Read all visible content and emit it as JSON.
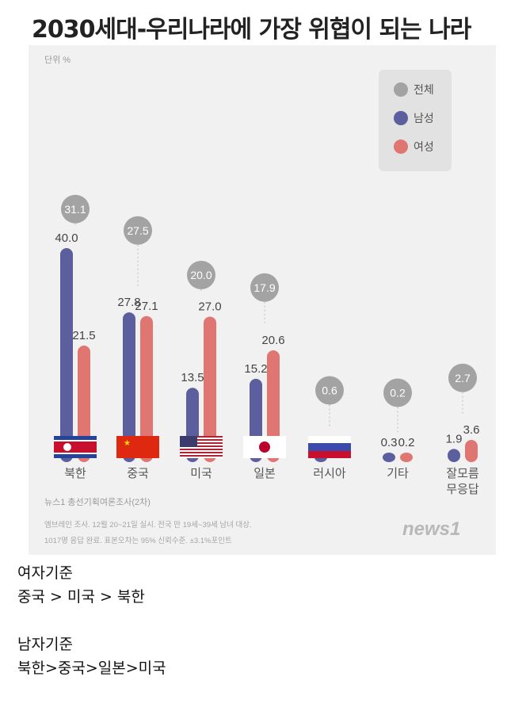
{
  "headline": "2030세대-우리나라에 가장 위협이 되는 나라",
  "chart_data": {
    "type": "bar",
    "title": "2030세대-우리나라에 가장 위협이 되는 나라",
    "unit_label": "단위 %",
    "categories": [
      {
        "lines": [
          "북한"
        ],
        "flag": "north-korea"
      },
      {
        "lines": [
          "중국"
        ],
        "flag": "china"
      },
      {
        "lines": [
          "미국"
        ],
        "flag": "usa"
      },
      {
        "lines": [
          "일본"
        ],
        "flag": "japan"
      },
      {
        "lines": [
          "러시아"
        ],
        "flag": "russia"
      },
      {
        "lines": [
          "기타"
        ],
        "flag": ""
      },
      {
        "lines": [
          "잘모름",
          "무응답"
        ],
        "flag": ""
      }
    ],
    "series": [
      {
        "name": "전체",
        "values": [
          31.1,
          27.5,
          20.0,
          17.9,
          0.6,
          0.2,
          2.7
        ],
        "color": "#a3a3a3"
      },
      {
        "name": "남성",
        "values": [
          40.0,
          27.8,
          13.5,
          15.2,
          1.2,
          0.3,
          1.9
        ],
        "color": "#5b5f9e"
      },
      {
        "name": "여성",
        "values": [
          21.5,
          27.1,
          27.0,
          20.6,
          null,
          0.2,
          3.6
        ],
        "color": "#e07672"
      }
    ],
    "value_labels": {
      "total": [
        "31.1",
        "27.5",
        "20.0",
        "17.9",
        "0.6",
        "0.2",
        "2.7"
      ],
      "male": [
        "40.0",
        "27.8",
        "13.5",
        "15.2",
        "1.2",
        "0.3",
        "1.9"
      ],
      "female": [
        "21.5",
        "27.1",
        "27.0",
        "20.6",
        "",
        "0.2",
        "3.6"
      ]
    },
    "legend_position": "top-right",
    "grid": false,
    "source": "뉴스1 총선기획여론조사(2차)",
    "notes": [
      "엠브레인 조사. 12월 20~21일 실시. 전국 만 19세~39세 남녀 대상.",
      "1017명 응답 완료. 표본오차는 95% 신뢰수준. ±3.1%포인트"
    ],
    "logo": "news1"
  },
  "body_lines": [
    "여자기준",
    "중국 > 미국 > 북한",
    "",
    "남자기준",
    "북한>중국>일본>미국"
  ]
}
